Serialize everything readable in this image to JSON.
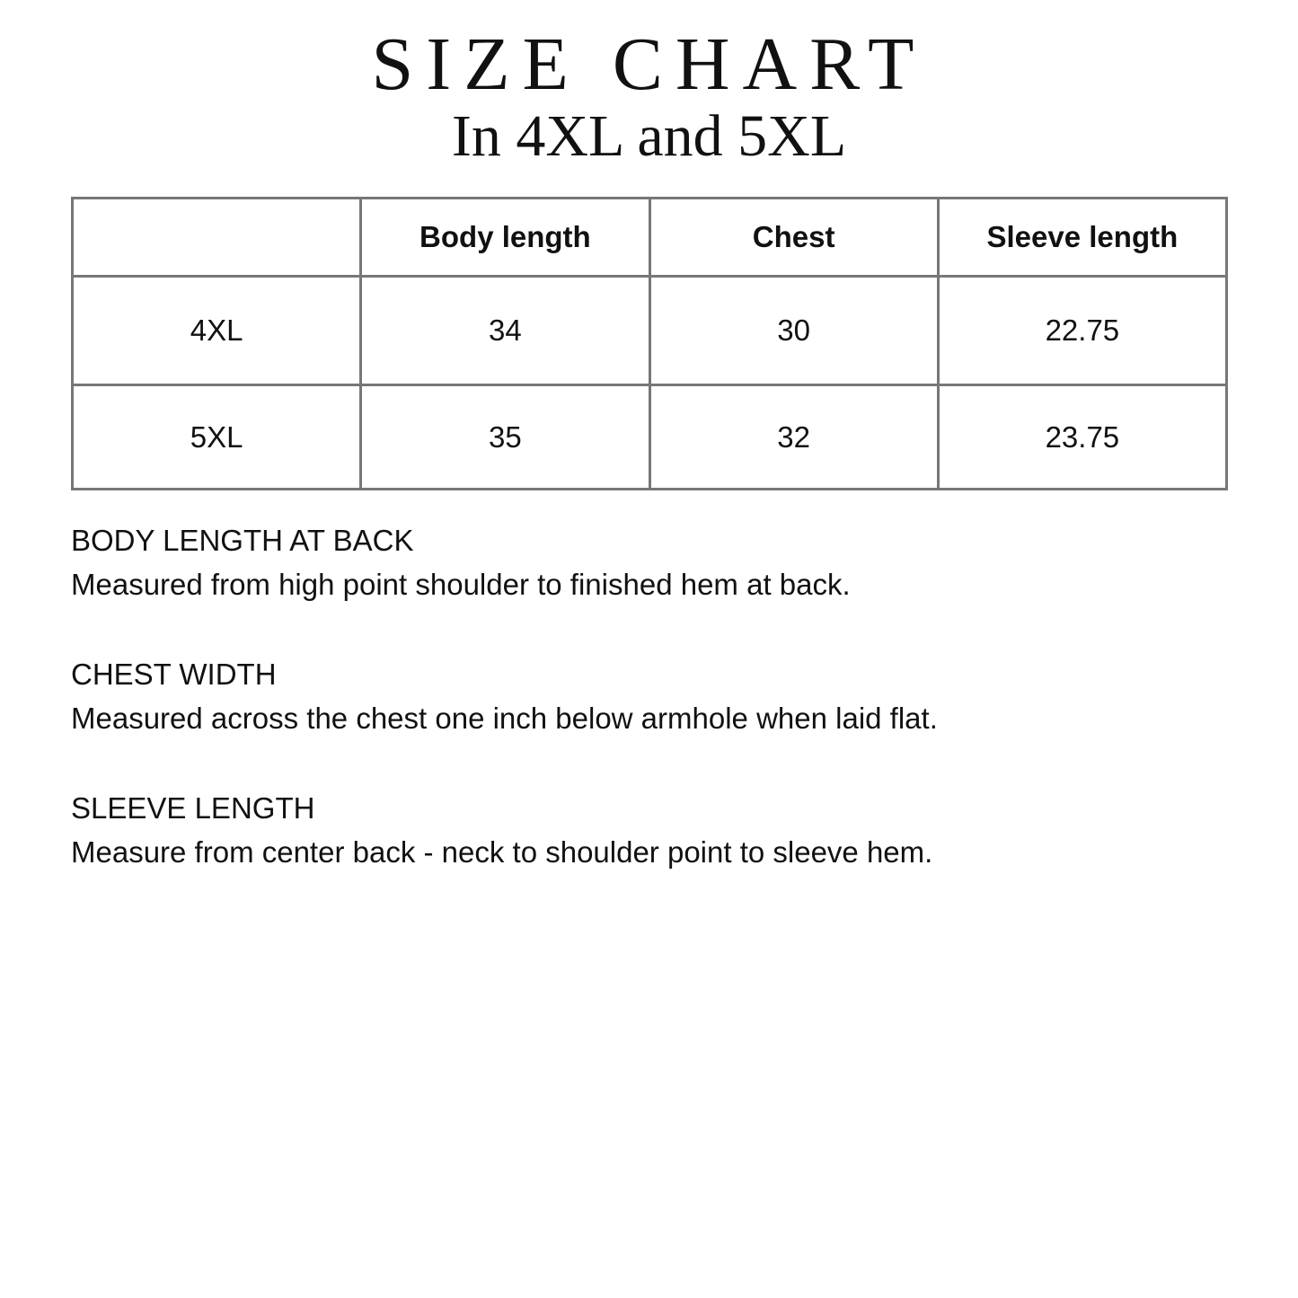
{
  "title": "SIZE CHART",
  "subtitle": "In 4XL and 5XL",
  "table": {
    "headers": [
      "",
      "Body length",
      "Chest",
      "Sleeve length"
    ],
    "rows": [
      [
        "4XL",
        "34",
        "30",
        "22.75"
      ],
      [
        "5XL",
        "35",
        "32",
        "23.75"
      ]
    ]
  },
  "notes": [
    {
      "heading": "BODY LENGTH AT BACK",
      "text": "Measured from high point shoulder to finished hem at back."
    },
    {
      "heading": "CHEST WIDTH",
      "text": "Measured across the chest one inch below armhole when laid flat."
    },
    {
      "heading": "SLEEVE LENGTH",
      "text": "Measure from center back - neck to shoulder point to sleeve hem."
    }
  ],
  "colors": {
    "border": "#777777",
    "text": "#111111"
  }
}
